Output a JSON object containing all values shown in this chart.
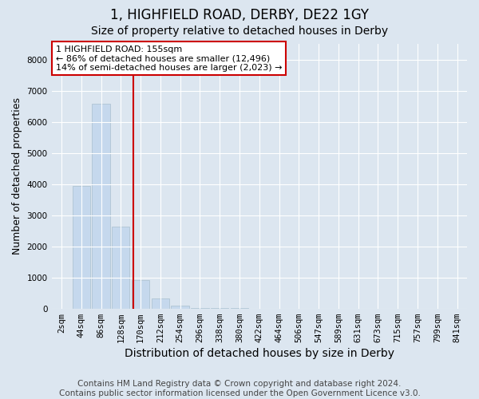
{
  "title": "1, HIGHFIELD ROAD, DERBY, DE22 1GY",
  "subtitle": "Size of property relative to detached houses in Derby",
  "xlabel": "Distribution of detached houses by size in Derby",
  "ylabel": "Number of detached properties",
  "categories": [
    "2sqm",
    "44sqm",
    "86sqm",
    "128sqm",
    "170sqm",
    "212sqm",
    "254sqm",
    "296sqm",
    "338sqm",
    "380sqm",
    "422sqm",
    "464sqm",
    "506sqm",
    "547sqm",
    "589sqm",
    "631sqm",
    "673sqm",
    "715sqm",
    "757sqm",
    "799sqm",
    "841sqm"
  ],
  "values": [
    0,
    3950,
    6580,
    2620,
    920,
    330,
    100,
    30,
    10,
    5,
    3,
    0,
    0,
    0,
    0,
    0,
    0,
    0,
    0,
    0,
    0
  ],
  "bar_color": "#c5d8ed",
  "bar_edge_color": "#a8bfce",
  "marker_line_color": "#cc0000",
  "annotation_text": "1 HIGHFIELD ROAD: 155sqm\n← 86% of detached houses are smaller (12,496)\n14% of semi-detached houses are larger (2,023) →",
  "annotation_box_color": "#ffffff",
  "annotation_box_edge": "#cc0000",
  "ylim": [
    0,
    8500
  ],
  "yticks": [
    0,
    1000,
    2000,
    3000,
    4000,
    5000,
    6000,
    7000,
    8000
  ],
  "background_color": "#dce6f0",
  "plot_bg_color": "#dce6f0",
  "grid_color": "#ffffff",
  "footer": "Contains HM Land Registry data © Crown copyright and database right 2024.\nContains public sector information licensed under the Open Government Licence v3.0.",
  "title_fontsize": 12,
  "subtitle_fontsize": 10,
  "xlabel_fontsize": 10,
  "ylabel_fontsize": 9,
  "tick_fontsize": 7.5,
  "footer_fontsize": 7.5,
  "annotation_fontsize": 8
}
